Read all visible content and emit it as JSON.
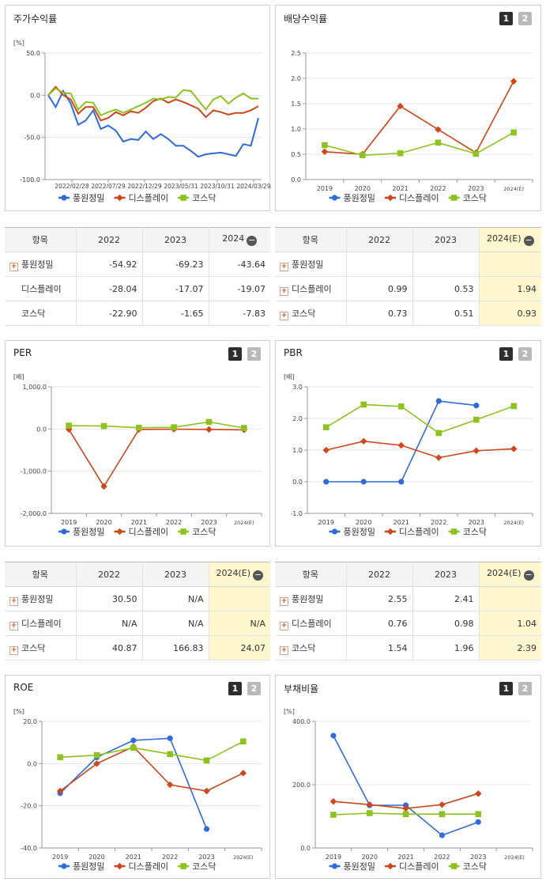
{
  "colors": {
    "s1": "#2e6bde",
    "s2": "#d04519",
    "s3": "#8ec21f"
  },
  "legend": {
    "s1": "풍원정밀",
    "s2": "디스플레이",
    "s3": "코스닥"
  },
  "buttons": {
    "one": "1",
    "two": "2"
  },
  "charts": {
    "stock": {
      "title": "주가수익률",
      "unit": "[%]",
      "chart_data": {
        "type": "line",
        "ylim": [
          -100,
          50
        ],
        "yticks": [
          "50.0",
          "0.0",
          "-50.0",
          "-100.0"
        ],
        "xticks": [
          "2022/02/28",
          "2022/07/29",
          "2022/12/29",
          "2023/05/31",
          "2023/10/31",
          "2024/03/29"
        ],
        "series": [
          {
            "name": "풍원정밀",
            "values": [
              0,
              -14,
              5,
              -10,
              -35,
              -30,
              -18,
              -40,
              -36,
              -42,
              -55,
              -52,
              -53,
              -43,
              -52,
              -46,
              -52,
              -60,
              -60,
              -66,
              -73,
              -70,
              -69,
              -68,
              -70,
              -72,
              -58,
              -60,
              -27
            ]
          },
          {
            "name": "디스플레이",
            "values": [
              0,
              10,
              0,
              -5,
              -22,
              -14,
              -14,
              -30,
              -27,
              -20,
              -24,
              -19,
              -21,
              -15,
              -7,
              -4,
              -9,
              -5,
              -8,
              -12,
              -16,
              -26,
              -18,
              -20,
              -23,
              -21,
              -21,
              -18,
              -13
            ]
          },
          {
            "name": "코스닥",
            "values": [
              0,
              8,
              3,
              2,
              -17,
              -8,
              -9,
              -24,
              -20,
              -17,
              -21,
              -17,
              -13,
              -9,
              -4,
              -5,
              -2,
              -3,
              6,
              5,
              -6,
              -17,
              -5,
              -1,
              -10,
              -3,
              2,
              -4,
              -4
            ]
          }
        ]
      }
    },
    "div": {
      "title": "배당수익률",
      "unit": "",
      "chart_data": {
        "type": "line",
        "ylim": [
          0,
          2.5
        ],
        "yticks": [
          "2.5",
          "2.0",
          "1.5",
          "1.0",
          "0.5",
          "0.0"
        ],
        "xticks": [
          "2019",
          "2020",
          "2021",
          "2022",
          "2023",
          "2024(E)"
        ],
        "series": [
          {
            "name": "풍원정밀",
            "values": [
              null,
              null,
              null,
              null,
              null,
              null
            ]
          },
          {
            "name": "디스플레이",
            "values": [
              0.55,
              0.5,
              1.45,
              0.99,
              0.53,
              1.94
            ]
          },
          {
            "name": "코스닥",
            "values": [
              0.68,
              0.48,
              0.52,
              0.73,
              0.51,
              0.93
            ]
          }
        ]
      }
    },
    "per": {
      "title": "PER",
      "unit": "[배]",
      "chart_data": {
        "type": "line",
        "ylim": [
          -2000,
          1000
        ],
        "yticks": [
          "1,000.0",
          "0.0",
          "-1,000.0",
          "-2,000.0"
        ],
        "xticks": [
          "2019",
          "2020",
          "2021",
          "2022",
          "2023",
          "2024(E)"
        ],
        "series": [
          {
            "name": "풍원정밀",
            "values": [
              null,
              null,
              null,
              null,
              null,
              null
            ]
          },
          {
            "name": "디스플레이",
            "values": [
              -10,
              -1360,
              -10,
              -5,
              -10,
              -20
            ]
          },
          {
            "name": "코스닥",
            "values": [
              80,
              70,
              30,
              40.87,
              166.83,
              24.07
            ]
          }
        ]
      }
    },
    "pbr": {
      "title": "PBR",
      "unit": "[배]",
      "chart_data": {
        "type": "line",
        "ylim": [
          -1,
          3
        ],
        "yticks": [
          "3.0",
          "2.0",
          "1.0",
          "0.0",
          "-1.0"
        ],
        "xticks": [
          "2019",
          "2020",
          "2021",
          "2022",
          "2023",
          "2024(E)"
        ],
        "series": [
          {
            "name": "풍원정밀",
            "values": [
              0,
              0,
              0,
              2.55,
              2.41,
              null
            ]
          },
          {
            "name": "디스플레이",
            "values": [
              1.0,
              1.28,
              1.15,
              0.76,
              0.98,
              1.04
            ]
          },
          {
            "name": "코스닥",
            "values": [
              1.72,
              2.44,
              2.38,
              1.54,
              1.96,
              2.39
            ]
          }
        ]
      }
    },
    "roe": {
      "title": "ROE",
      "unit": "[%]",
      "chart_data": {
        "type": "line",
        "ylim": [
          -40,
          20
        ],
        "yticks": [
          "20.0",
          "0.0",
          "-20.0",
          "-40.0"
        ],
        "xticks": [
          "2019",
          "2020",
          "2021",
          "2022",
          "2023",
          "2024(E)"
        ],
        "series": [
          {
            "name": "풍원정밀",
            "values": [
              -14,
              3,
              11,
              12,
              -31,
              null
            ]
          },
          {
            "name": "디스플레이",
            "values": [
              -13,
              0,
              8,
              -10,
              -13,
              -4.5
            ]
          },
          {
            "name": "코스닥",
            "values": [
              3,
              4,
              7.5,
              4.5,
              1.5,
              10.5
            ]
          }
        ]
      }
    },
    "debt": {
      "title": "부채비율",
      "unit": "[%]",
      "chart_data": {
        "type": "line",
        "ylim": [
          0,
          400
        ],
        "yticks": [
          "400.0",
          "200.0",
          "0.0"
        ],
        "xticks": [
          "2019",
          "2020",
          "2021",
          "2022",
          "2023",
          "2024(E)"
        ],
        "series": [
          {
            "name": "풍원정밀",
            "values": [
              355,
              135,
              135,
              40,
              82,
              null
            ]
          },
          {
            "name": "디스플레이",
            "values": [
              147,
              137,
              125,
              137,
              172,
              null
            ]
          },
          {
            "name": "코스닥",
            "values": [
              105,
              110,
              107,
              107,
              107,
              null
            ]
          }
        ]
      }
    }
  },
  "tables": {
    "stock": {
      "head": [
        "항목",
        "2022",
        "2023",
        "2024"
      ],
      "rows": [
        {
          "name": "풍원정밀",
          "plus": true,
          "v": [
            "-54.92",
            "-69.23",
            "-43.64"
          ]
        },
        {
          "name": "디스플레이",
          "plus": false,
          "v": [
            "-28.04",
            "-17.07",
            "-19.07"
          ]
        },
        {
          "name": "코스닥",
          "plus": false,
          "v": [
            "-22.90",
            "-1.65",
            "-7.83"
          ]
        }
      ]
    },
    "div": {
      "head": [
        "항목",
        "2022",
        "2023",
        "2024(E)"
      ],
      "rows": [
        {
          "name": "풍원정밀",
          "plus": true,
          "v": [
            "",
            "",
            ""
          ]
        },
        {
          "name": "디스플레이",
          "plus": true,
          "v": [
            "0.99",
            "0.53",
            "1.94"
          ]
        },
        {
          "name": "코스닥",
          "plus": true,
          "v": [
            "0.73",
            "0.51",
            "0.93"
          ]
        }
      ]
    },
    "per": {
      "head": [
        "항목",
        "2022",
        "2023",
        "2024(E)"
      ],
      "rows": [
        {
          "name": "풍원정밀",
          "plus": true,
          "v": [
            "30.50",
            "N/A",
            ""
          ]
        },
        {
          "name": "디스플레이",
          "plus": true,
          "v": [
            "N/A",
            "N/A",
            "N/A"
          ]
        },
        {
          "name": "코스닥",
          "plus": true,
          "v": [
            "40.87",
            "166.83",
            "24.07"
          ]
        }
      ]
    },
    "pbr": {
      "head": [
        "항목",
        "2022",
        "2023",
        "2024(E)"
      ],
      "rows": [
        {
          "name": "풍원정밀",
          "plus": true,
          "v": [
            "2.55",
            "2.41",
            ""
          ]
        },
        {
          "name": "디스플레이",
          "plus": true,
          "v": [
            "0.76",
            "0.98",
            "1.04"
          ]
        },
        {
          "name": "코스닥",
          "plus": true,
          "v": [
            "1.54",
            "1.96",
            "2.39"
          ]
        }
      ]
    }
  }
}
